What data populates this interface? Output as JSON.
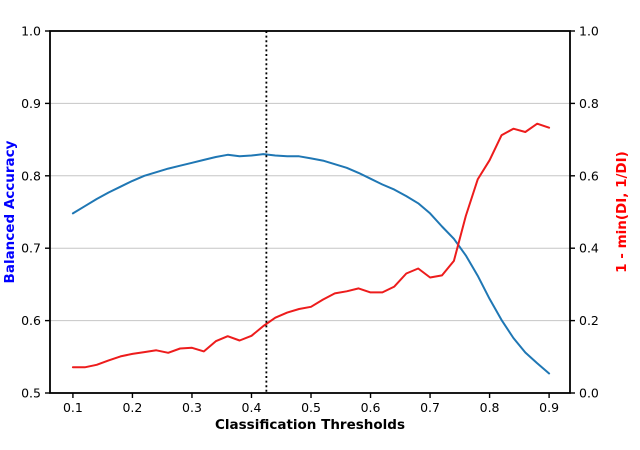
{
  "figure": {
    "title": "",
    "xlabel": "Classification Thresholds",
    "ylabel_left": "Balanced Accuracy",
    "ylabel_right": "1 - min(DI, 1/DI)",
    "colors": {
      "blue_line": "#1f77b4",
      "red_line": "#ed1c1c",
      "blue_axis_label": "#0000ff",
      "red_axis_label": "#ff0000",
      "grid": "#c6c6c6",
      "spine": "#000000",
      "vline": "#000000",
      "background": "#ffffff"
    }
  },
  "chart_data": {
    "type": "line",
    "title": "",
    "xlabel": "Classification Thresholds",
    "xlim": [
      0.0615,
      0.9351
    ],
    "x_ticks": [
      0.1,
      0.2,
      0.3,
      0.4,
      0.5,
      0.6,
      0.7,
      0.8,
      0.9
    ],
    "grid": "horizontal-only",
    "legend": "none",
    "vline": {
      "x": 0.425,
      "style": "dotted",
      "color": "#000000"
    },
    "axes": {
      "left": {
        "label": "Balanced Accuracy",
        "label_color": "#0000ff",
        "ylim": [
          0.5,
          1.0
        ],
        "ticks": [
          0.5,
          0.6,
          0.7,
          0.8,
          0.9,
          1.0
        ],
        "tick_decimals": 1
      },
      "right": {
        "label": "1 - min(DI, 1/DI)",
        "label_color": "#ff0000",
        "ylim": [
          0.0,
          1.0
        ],
        "ticks": [
          0.0,
          0.2,
          0.4,
          0.6,
          0.8,
          1.0
        ],
        "tick_decimals": 1
      }
    },
    "gridline_values_left": [
      0.6,
      0.7,
      0.8,
      0.9
    ],
    "series": [
      {
        "name": "Balanced Accuracy",
        "axis": "left",
        "color": "#1f77b4",
        "x": [
          0.1,
          0.12,
          0.14,
          0.16,
          0.18,
          0.2,
          0.22,
          0.24,
          0.26,
          0.28,
          0.3,
          0.32,
          0.34,
          0.36,
          0.38,
          0.4,
          0.42,
          0.44,
          0.46,
          0.48,
          0.5,
          0.52,
          0.54,
          0.56,
          0.58,
          0.6,
          0.62,
          0.64,
          0.66,
          0.68,
          0.7,
          0.72,
          0.74,
          0.76,
          0.78,
          0.8,
          0.82,
          0.84,
          0.86,
          0.88,
          0.9
        ],
        "y": [
          0.748,
          0.758,
          0.768,
          0.777,
          0.785,
          0.793,
          0.8,
          0.805,
          0.81,
          0.814,
          0.818,
          0.822,
          0.826,
          0.829,
          0.827,
          0.828,
          0.83,
          0.828,
          0.827,
          0.827,
          0.824,
          0.821,
          0.816,
          0.811,
          0.804,
          0.796,
          0.788,
          0.781,
          0.772,
          0.762,
          0.748,
          0.73,
          0.713,
          0.69,
          0.662,
          0.63,
          0.601,
          0.576,
          0.556,
          0.541,
          0.527
        ]
      },
      {
        "name": "1 - min(DI, 1/DI)",
        "axis": "right",
        "color": "#ed1c1c",
        "x": [
          0.1,
          0.12,
          0.14,
          0.16,
          0.18,
          0.2,
          0.22,
          0.24,
          0.26,
          0.28,
          0.3,
          0.32,
          0.34,
          0.36,
          0.38,
          0.4,
          0.42,
          0.44,
          0.46,
          0.48,
          0.5,
          0.52,
          0.54,
          0.56,
          0.58,
          0.6,
          0.62,
          0.64,
          0.66,
          0.68,
          0.7,
          0.72,
          0.74,
          0.76,
          0.78,
          0.8,
          0.82,
          0.84,
          0.86,
          0.88,
          0.9
        ],
        "y": [
          0.071,
          0.071,
          0.078,
          0.09,
          0.101,
          0.108,
          0.113,
          0.118,
          0.111,
          0.123,
          0.125,
          0.115,
          0.143,
          0.157,
          0.145,
          0.158,
          0.185,
          0.208,
          0.222,
          0.232,
          0.238,
          0.258,
          0.275,
          0.281,
          0.289,
          0.278,
          0.278,
          0.294,
          0.33,
          0.344,
          0.319,
          0.325,
          0.365,
          0.489,
          0.59,
          0.643,
          0.712,
          0.73,
          0.721,
          0.744,
          0.733
        ]
      }
    ]
  }
}
